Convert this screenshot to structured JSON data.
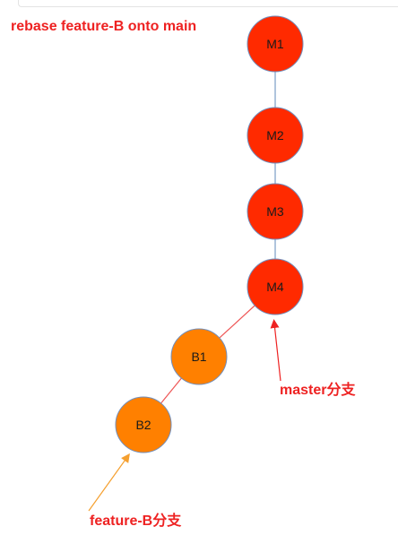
{
  "title": "rebase feature-B onto main",
  "nodes": [
    {
      "id": "M1",
      "label": "M1",
      "branch": "main"
    },
    {
      "id": "M2",
      "label": "M2",
      "branch": "main"
    },
    {
      "id": "M3",
      "label": "M3",
      "branch": "main"
    },
    {
      "id": "M4",
      "label": "M4",
      "branch": "main"
    },
    {
      "id": "B1",
      "label": "B1",
      "branch": "feature-B"
    },
    {
      "id": "B2",
      "label": "B2",
      "branch": "feature-B"
    }
  ],
  "edges": [
    {
      "from": "M1",
      "to": "M2",
      "color": "#7a9cc6"
    },
    {
      "from": "M2",
      "to": "M3",
      "color": "#7a9cc6"
    },
    {
      "from": "M3",
      "to": "M4",
      "color": "#7a9cc6"
    },
    {
      "from": "M4",
      "to": "B1",
      "color": "#ee5555"
    },
    {
      "from": "B1",
      "to": "B2",
      "color": "#ee5555"
    }
  ],
  "pointers": {
    "master": {
      "label": "master分支",
      "target": "M4",
      "color": "#ee2222"
    },
    "feature": {
      "label": "feature-B分支",
      "target": "B2",
      "color": "#f5a030"
    }
  },
  "colors": {
    "main_fill": "#ff2a00",
    "feature_fill": "#ff8000",
    "node_stroke": "#6f8fbf",
    "title": "#ee2222",
    "label_text": "#1a1a1a"
  }
}
